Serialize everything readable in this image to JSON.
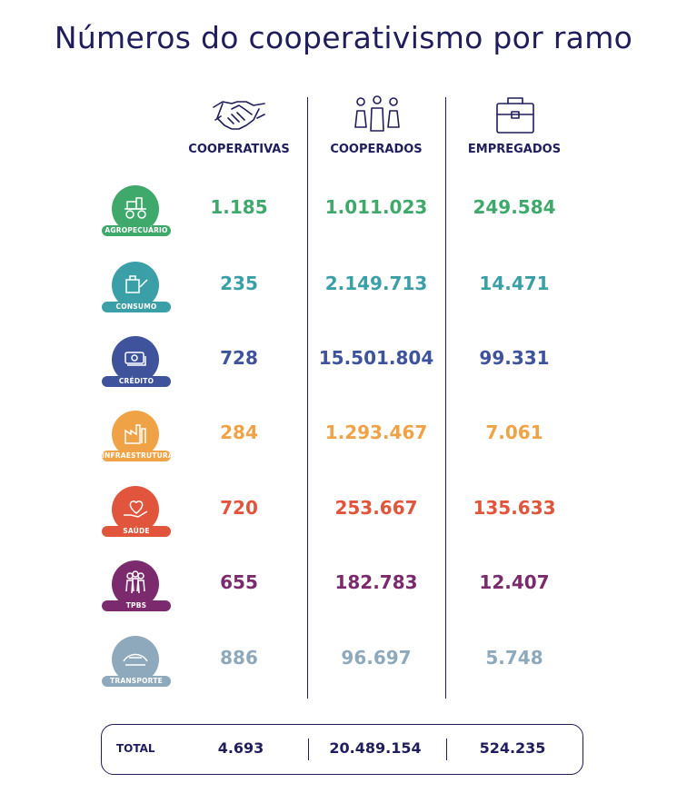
{
  "title": "Números do cooperativismo por ramo",
  "columns": {
    "cooperativas": "COOPERATIVAS",
    "cooperados": "COOPERADOS",
    "empregados": "EMPREGADOS"
  },
  "rows": [
    {
      "ramo": "AGROPECUÁRIO",
      "icon": "tractor-icon",
      "color": "#3fa86b",
      "cooperativas": "1.185",
      "cooperados": "1.011.023",
      "empregados": "249.584"
    },
    {
      "ramo": "CONSUMO",
      "icon": "shopping-bag-icon",
      "color": "#3b9fa7",
      "cooperativas": "235",
      "cooperados": "2.149.713",
      "empregados": "14.471"
    },
    {
      "ramo": "CRÉDITO",
      "icon": "money-icon",
      "color": "#3e539c",
      "cooperativas": "728",
      "cooperados": "15.501.804",
      "empregados": "99.331"
    },
    {
      "ramo": "INFRAESTRUTURA",
      "icon": "factory-icon",
      "color": "#f0a346",
      "cooperativas": "284",
      "cooperados": "1.293.467",
      "empregados": "7.061"
    },
    {
      "ramo": "SAÚDE",
      "icon": "heart-hand-icon",
      "color": "#e0553c",
      "cooperativas": "720",
      "cooperados": "253.667",
      "empregados": "135.633"
    },
    {
      "ramo": "TPBS",
      "icon": "people-icon",
      "color": "#7b2b6d",
      "cooperativas": "655",
      "cooperados": "182.783",
      "empregados": "12.407"
    },
    {
      "ramo": "TRANSPORTE",
      "icon": "road-icon",
      "color": "#8ea9bb",
      "cooperativas": "886",
      "cooperados": "96.697",
      "empregados": "5.748"
    }
  ],
  "total": {
    "label": "TOTAL",
    "cooperativas": "4.693",
    "cooperados": "20.489.154",
    "empregados": "524.235"
  }
}
